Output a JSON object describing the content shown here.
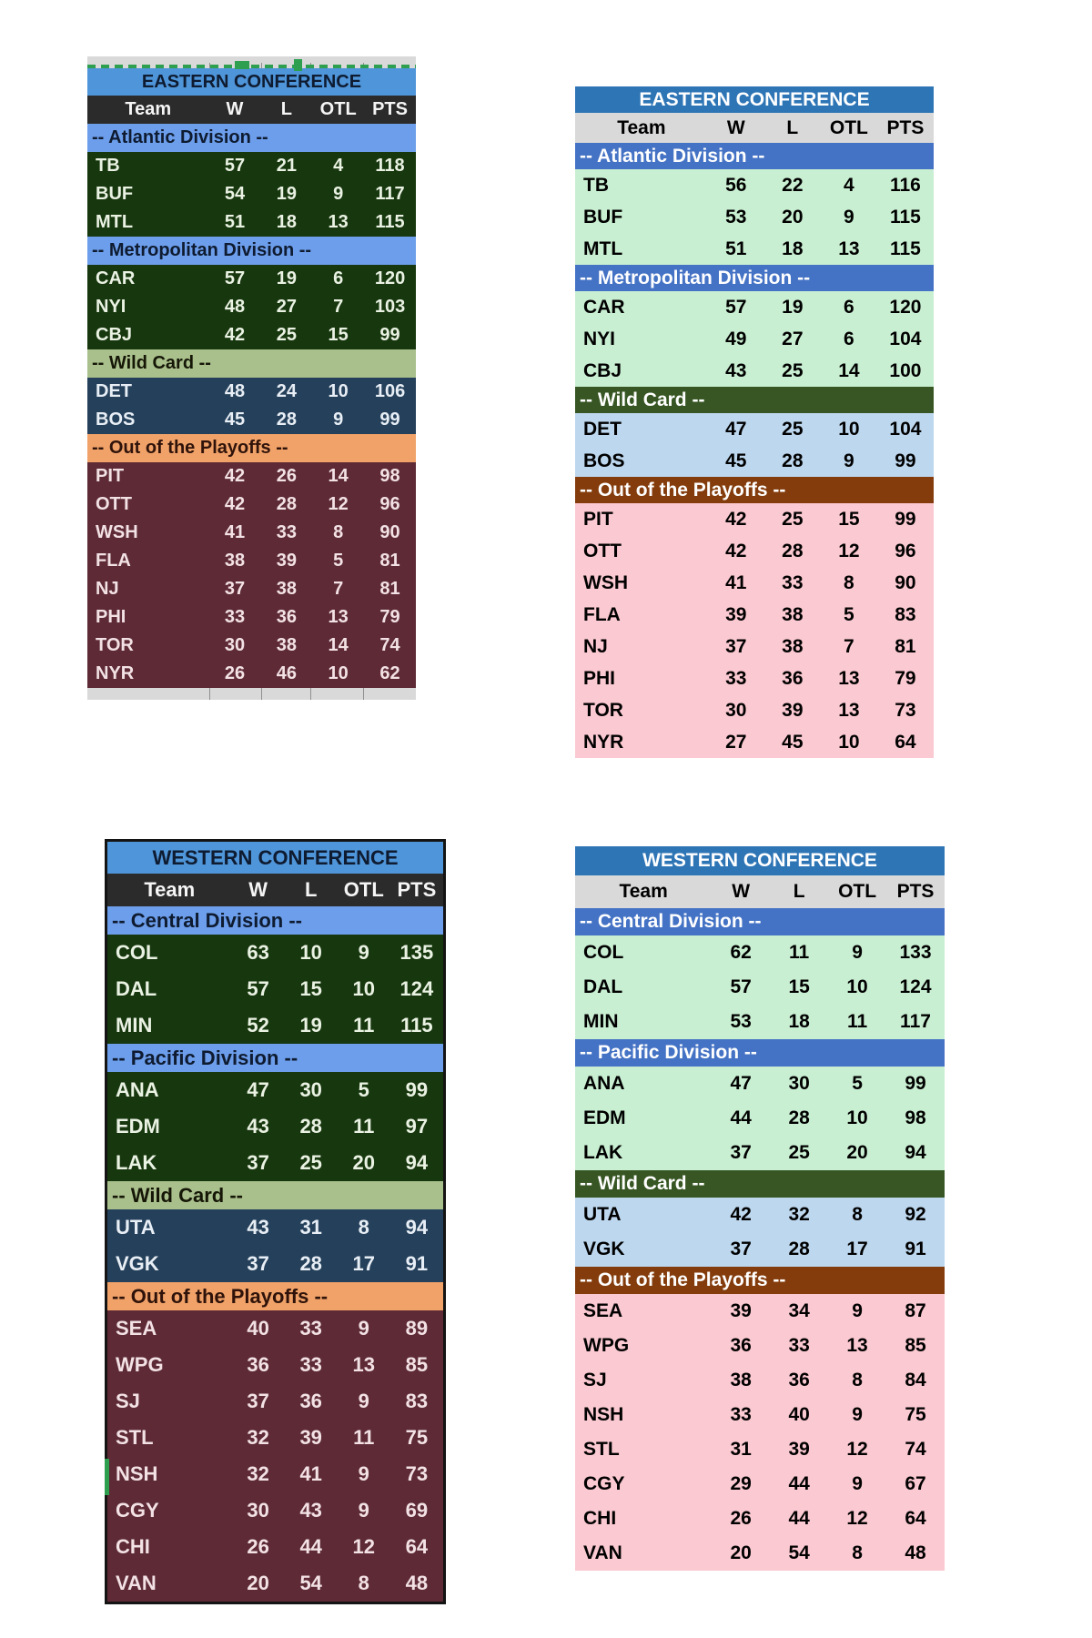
{
  "themes": {
    "dark": {
      "title_bg": "#4f95d9",
      "title_text": "#0e1b30",
      "colhead_bg": "#2b2b2b",
      "colhead_text": "#f5f5f5",
      "division_header_bg": "#6d9eeb",
      "division_header_text": "#0e1b30",
      "division_row_bg": "#17370e",
      "division_row_text": "#eaf2e3",
      "wildcard_header_bg": "#a9c08c",
      "wildcard_header_text": "#161607",
      "wildcard_row_bg": "#25405a",
      "wildcard_row_text": "#e8eef5",
      "out_header_bg": "#f0a269",
      "out_header_text": "#2f130a",
      "out_row_bg": "#5d2a36",
      "out_row_text": "#f3e2e5",
      "border": "#141414"
    },
    "light": {
      "title_bg": "#2e75b6",
      "title_text": "#ffffff",
      "colhead_bg": "#d9d9d9",
      "colhead_text": "#000000",
      "division_header_bg": "#4472c4",
      "division_header_text": "#ffffff",
      "division_row_bg": "#c9efd2",
      "division_row_text": "#000000",
      "wildcard_header_bg": "#375623",
      "wildcard_header_text": "#ffffff",
      "wildcard_row_bg": "#bdd7ee",
      "wildcard_row_text": "#000000",
      "out_header_bg": "#843c0c",
      "out_header_text": "#ffffff",
      "out_row_bg": "#fbc9d1",
      "out_row_text": "#000000"
    },
    "artifacts": {
      "selection_green": "#2e9e4f",
      "strip_gray": "#d9d9d9"
    }
  },
  "tables": [
    {
      "title": "EASTERN CONFERENCE",
      "theme": "dark",
      "columns": [
        "Team",
        "W",
        "L",
        "OTL",
        "PTS"
      ],
      "rows": [
        {
          "type": "section",
          "style": "division",
          "label": "-- Atlantic Division --"
        },
        {
          "type": "team",
          "style": "division",
          "cells": [
            "TB",
            "57",
            "21",
            "4",
            "118"
          ]
        },
        {
          "type": "team",
          "style": "division",
          "cells": [
            "BUF",
            "54",
            "19",
            "9",
            "117"
          ]
        },
        {
          "type": "team",
          "style": "division",
          "cells": [
            "MTL",
            "51",
            "18",
            "13",
            "115"
          ]
        },
        {
          "type": "section",
          "style": "division",
          "label": "-- Metropolitan Division --"
        },
        {
          "type": "team",
          "style": "division",
          "cells": [
            "CAR",
            "57",
            "19",
            "6",
            "120"
          ]
        },
        {
          "type": "team",
          "style": "division",
          "cells": [
            "NYI",
            "48",
            "27",
            "7",
            "103"
          ]
        },
        {
          "type": "team",
          "style": "division",
          "cells": [
            "CBJ",
            "42",
            "25",
            "15",
            "99"
          ]
        },
        {
          "type": "section",
          "style": "wildcard",
          "label": "-- Wild Card --"
        },
        {
          "type": "team",
          "style": "wildcard",
          "cells": [
            "DET",
            "48",
            "24",
            "10",
            "106"
          ]
        },
        {
          "type": "team",
          "style": "wildcard",
          "cells": [
            "BOS",
            "45",
            "28",
            "9",
            "99"
          ]
        },
        {
          "type": "section",
          "style": "out",
          "label": "-- Out of the Playoffs --"
        },
        {
          "type": "team",
          "style": "out",
          "cells": [
            "PIT",
            "42",
            "26",
            "14",
            "98"
          ]
        },
        {
          "type": "team",
          "style": "out",
          "cells": [
            "OTT",
            "42",
            "28",
            "12",
            "96"
          ]
        },
        {
          "type": "team",
          "style": "out",
          "cells": [
            "WSH",
            "41",
            "33",
            "8",
            "90"
          ]
        },
        {
          "type": "team",
          "style": "out",
          "cells": [
            "FLA",
            "38",
            "39",
            "5",
            "81"
          ]
        },
        {
          "type": "team",
          "style": "out",
          "cells": [
            "NJ",
            "37",
            "38",
            "7",
            "81"
          ]
        },
        {
          "type": "team",
          "style": "out",
          "cells": [
            "PHI",
            "33",
            "36",
            "13",
            "79"
          ]
        },
        {
          "type": "team",
          "style": "out",
          "cells": [
            "TOR",
            "30",
            "38",
            "14",
            "74"
          ]
        },
        {
          "type": "team",
          "style": "out",
          "cells": [
            "NYR",
            "26",
            "46",
            "10",
            "62"
          ]
        }
      ]
    },
    {
      "title": "EASTERN CONFERENCE",
      "theme": "light",
      "columns": [
        "Team",
        "W",
        "L",
        "OTL",
        "PTS"
      ],
      "rows": [
        {
          "type": "section",
          "style": "division",
          "label": "-- Atlantic Division --"
        },
        {
          "type": "team",
          "style": "division",
          "cells": [
            "TB",
            "56",
            "22",
            "4",
            "116"
          ]
        },
        {
          "type": "team",
          "style": "division",
          "cells": [
            "BUF",
            "53",
            "20",
            "9",
            "115"
          ]
        },
        {
          "type": "team",
          "style": "division",
          "cells": [
            "MTL",
            "51",
            "18",
            "13",
            "115"
          ]
        },
        {
          "type": "section",
          "style": "division",
          "label": "-- Metropolitan Division --"
        },
        {
          "type": "team",
          "style": "division",
          "cells": [
            "CAR",
            "57",
            "19",
            "6",
            "120"
          ]
        },
        {
          "type": "team",
          "style": "division",
          "cells": [
            "NYI",
            "49",
            "27",
            "6",
            "104"
          ]
        },
        {
          "type": "team",
          "style": "division",
          "cells": [
            "CBJ",
            "43",
            "25",
            "14",
            "100"
          ]
        },
        {
          "type": "section",
          "style": "wildcard",
          "label": "-- Wild Card --"
        },
        {
          "type": "team",
          "style": "wildcard",
          "cells": [
            "DET",
            "47",
            "25",
            "10",
            "104"
          ]
        },
        {
          "type": "team",
          "style": "wildcard",
          "cells": [
            "BOS",
            "45",
            "28",
            "9",
            "99"
          ]
        },
        {
          "type": "section",
          "style": "out",
          "label": "-- Out of the Playoffs --"
        },
        {
          "type": "team",
          "style": "out",
          "cells": [
            "PIT",
            "42",
            "25",
            "15",
            "99"
          ]
        },
        {
          "type": "team",
          "style": "out",
          "cells": [
            "OTT",
            "42",
            "28",
            "12",
            "96"
          ]
        },
        {
          "type": "team",
          "style": "out",
          "cells": [
            "WSH",
            "41",
            "33",
            "8",
            "90"
          ]
        },
        {
          "type": "team",
          "style": "out",
          "cells": [
            "FLA",
            "39",
            "38",
            "5",
            "83"
          ]
        },
        {
          "type": "team",
          "style": "out",
          "cells": [
            "NJ",
            "37",
            "38",
            "7",
            "81"
          ]
        },
        {
          "type": "team",
          "style": "out",
          "cells": [
            "PHI",
            "33",
            "36",
            "13",
            "79"
          ]
        },
        {
          "type": "team",
          "style": "out",
          "cells": [
            "TOR",
            "30",
            "39",
            "13",
            "73"
          ]
        },
        {
          "type": "team",
          "style": "out",
          "cells": [
            "NYR",
            "27",
            "45",
            "10",
            "64"
          ]
        }
      ]
    },
    {
      "title": "WESTERN CONFERENCE",
      "theme": "dark",
      "columns": [
        "Team",
        "W",
        "L",
        "OTL",
        "PTS"
      ],
      "rows": [
        {
          "type": "section",
          "style": "division",
          "label": "-- Central Division --"
        },
        {
          "type": "team",
          "style": "division",
          "cells": [
            "COL",
            "63",
            "10",
            "9",
            "135"
          ]
        },
        {
          "type": "team",
          "style": "division",
          "cells": [
            "DAL",
            "57",
            "15",
            "10",
            "124"
          ]
        },
        {
          "type": "team",
          "style": "division",
          "cells": [
            "MIN",
            "52",
            "19",
            "11",
            "115"
          ]
        },
        {
          "type": "section",
          "style": "division",
          "label": "-- Pacific Division --"
        },
        {
          "type": "team",
          "style": "division",
          "cells": [
            "ANA",
            "47",
            "30",
            "5",
            "99"
          ]
        },
        {
          "type": "team",
          "style": "division",
          "cells": [
            "EDM",
            "43",
            "28",
            "11",
            "97"
          ]
        },
        {
          "type": "team",
          "style": "division",
          "cells": [
            "LAK",
            "37",
            "25",
            "20",
            "94"
          ]
        },
        {
          "type": "section",
          "style": "wildcard",
          "label": "-- Wild Card --"
        },
        {
          "type": "team",
          "style": "wildcard",
          "cells": [
            "UTA",
            "43",
            "31",
            "8",
            "94"
          ]
        },
        {
          "type": "team",
          "style": "wildcard",
          "cells": [
            "VGK",
            "37",
            "28",
            "17",
            "91"
          ]
        },
        {
          "type": "section",
          "style": "out",
          "label": "-- Out of the Playoffs --"
        },
        {
          "type": "team",
          "style": "out",
          "cells": [
            "SEA",
            "40",
            "33",
            "9",
            "89"
          ]
        },
        {
          "type": "team",
          "style": "out",
          "cells": [
            "WPG",
            "36",
            "33",
            "13",
            "85"
          ]
        },
        {
          "type": "team",
          "style": "out",
          "cells": [
            "SJ",
            "37",
            "36",
            "9",
            "83"
          ]
        },
        {
          "type": "team",
          "style": "out",
          "cells": [
            "STL",
            "32",
            "39",
            "11",
            "75"
          ]
        },
        {
          "type": "team",
          "style": "out",
          "cells": [
            "NSH",
            "32",
            "41",
            "9",
            "73"
          ]
        },
        {
          "type": "team",
          "style": "out",
          "cells": [
            "CGY",
            "30",
            "43",
            "9",
            "69"
          ]
        },
        {
          "type": "team",
          "style": "out",
          "cells": [
            "CHI",
            "26",
            "44",
            "12",
            "64"
          ]
        },
        {
          "type": "team",
          "style": "out",
          "cells": [
            "VAN",
            "20",
            "54",
            "8",
            "48"
          ]
        }
      ]
    },
    {
      "title": "WESTERN CONFERENCE",
      "theme": "light",
      "columns": [
        "Team",
        "W",
        "L",
        "OTL",
        "PTS"
      ],
      "rows": [
        {
          "type": "section",
          "style": "division",
          "label": "-- Central Division --"
        },
        {
          "type": "team",
          "style": "division",
          "cells": [
            "COL",
            "62",
            "11",
            "9",
            "133"
          ]
        },
        {
          "type": "team",
          "style": "division",
          "cells": [
            "DAL",
            "57",
            "15",
            "10",
            "124"
          ]
        },
        {
          "type": "team",
          "style": "division",
          "cells": [
            "MIN",
            "53",
            "18",
            "11",
            "117"
          ]
        },
        {
          "type": "section",
          "style": "division",
          "label": "-- Pacific Division --"
        },
        {
          "type": "team",
          "style": "division",
          "cells": [
            "ANA",
            "47",
            "30",
            "5",
            "99"
          ]
        },
        {
          "type": "team",
          "style": "division",
          "cells": [
            "EDM",
            "44",
            "28",
            "10",
            "98"
          ]
        },
        {
          "type": "team",
          "style": "division",
          "cells": [
            "LAK",
            "37",
            "25",
            "20",
            "94"
          ]
        },
        {
          "type": "section",
          "style": "wildcard",
          "label": "-- Wild Card --"
        },
        {
          "type": "team",
          "style": "wildcard",
          "cells": [
            "UTA",
            "42",
            "32",
            "8",
            "92"
          ]
        },
        {
          "type": "team",
          "style": "wildcard",
          "cells": [
            "VGK",
            "37",
            "28",
            "17",
            "91"
          ]
        },
        {
          "type": "section",
          "style": "out",
          "label": "-- Out of the Playoffs --"
        },
        {
          "type": "team",
          "style": "out",
          "cells": [
            "SEA",
            "39",
            "34",
            "9",
            "87"
          ]
        },
        {
          "type": "team",
          "style": "out",
          "cells": [
            "WPG",
            "36",
            "33",
            "13",
            "85"
          ]
        },
        {
          "type": "team",
          "style": "out",
          "cells": [
            "SJ",
            "38",
            "36",
            "8",
            "84"
          ]
        },
        {
          "type": "team",
          "style": "out",
          "cells": [
            "NSH",
            "33",
            "40",
            "9",
            "75"
          ]
        },
        {
          "type": "team",
          "style": "out",
          "cells": [
            "STL",
            "31",
            "39",
            "12",
            "74"
          ]
        },
        {
          "type": "team",
          "style": "out",
          "cells": [
            "CGY",
            "29",
            "44",
            "9",
            "67"
          ]
        },
        {
          "type": "team",
          "style": "out",
          "cells": [
            "CHI",
            "26",
            "44",
            "12",
            "64"
          ]
        },
        {
          "type": "team",
          "style": "out",
          "cells": [
            "VAN",
            "20",
            "54",
            "8",
            "48"
          ]
        }
      ]
    }
  ]
}
